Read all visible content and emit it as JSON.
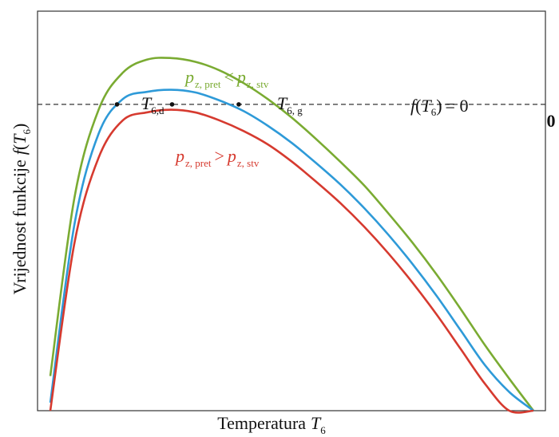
{
  "chart_data": {
    "type": "line",
    "title": "",
    "xlabel": {
      "main": "Temperatura",
      "var": "T",
      "sub": "6"
    },
    "ylabel": {
      "main": "Vrijednost funkcije",
      "func": "f",
      "var": "T",
      "sub": "6"
    },
    "y_tick_label": "0",
    "grid": false,
    "zero_line": {
      "label_func": "f",
      "label_var": "T",
      "label_sub": "6",
      "label_rest": "= 0"
    },
    "series": [
      {
        "id": "green",
        "color": "#7aab32",
        "label": {
          "p": "p",
          "sub1": "z, pret",
          "op": "<",
          "p2": "p",
          "sub2": "z, stv"
        },
        "x": [
          0.0,
          0.05,
          0.1,
          0.15,
          0.2,
          0.25,
          0.3,
          0.35,
          0.4,
          0.45,
          0.5,
          0.55,
          0.6,
          0.65,
          0.7,
          0.75,
          0.8,
          0.85,
          0.9,
          0.95,
          1.0
        ],
        "y": [
          -1.02,
          -0.35,
          -0.02,
          0.119,
          0.168,
          0.174,
          0.16,
          0.128,
          0.08,
          0.02,
          -0.05,
          -0.13,
          -0.215,
          -0.305,
          -0.41,
          -0.52,
          -0.64,
          -0.77,
          -0.905,
          -1.03,
          -1.15
        ]
      },
      {
        "id": "blue",
        "color": "#2e9ad8",
        "x": [
          0.0,
          0.05,
          0.1,
          0.15,
          0.2,
          0.25,
          0.3,
          0.35,
          0.4,
          0.45,
          0.5,
          0.55,
          0.6,
          0.65,
          0.7,
          0.75,
          0.8,
          0.85,
          0.9,
          0.95,
          1.0
        ],
        "y": [
          -1.12,
          -0.45,
          -0.11,
          0.02,
          0.047,
          0.055,
          0.045,
          0.015,
          -0.025,
          -0.08,
          -0.145,
          -0.22,
          -0.3,
          -0.39,
          -0.49,
          -0.6,
          -0.72,
          -0.85,
          -0.98,
          -1.08,
          -1.15
        ]
      },
      {
        "id": "red",
        "color": "#d63a2f",
        "label": {
          "p": "p",
          "sub1": "z, pret",
          "op": ">",
          "p2": "p",
          "sub2": "z, stv"
        },
        "x": [
          0.0,
          0.05,
          0.1,
          0.15,
          0.2,
          0.25,
          0.3,
          0.35,
          0.4,
          0.45,
          0.5,
          0.55,
          0.6,
          0.65,
          0.7,
          0.75,
          0.8,
          0.85,
          0.9,
          0.95,
          1.0
        ],
        "y": [
          -1.15,
          -0.52,
          -0.2,
          -0.06,
          -0.03,
          -0.02,
          -0.03,
          -0.06,
          -0.1,
          -0.15,
          -0.215,
          -0.29,
          -0.37,
          -0.46,
          -0.56,
          -0.67,
          -0.79,
          -0.92,
          -1.05,
          -1.15,
          -1.15
        ]
      }
    ],
    "points": [
      {
        "name": "T6,d",
        "var": "T",
        "sub": "6,d",
        "x": 0.138,
        "y": 0
      },
      {
        "name": "tangent",
        "x": 0.252,
        "y": 0
      },
      {
        "name": "T6,g",
        "var": "T",
        "sub": "6, g",
        "x": 0.39,
        "y": 0
      }
    ],
    "xlim": [
      0,
      1
    ],
    "ylim": [
      -1.15,
      0.35
    ]
  }
}
